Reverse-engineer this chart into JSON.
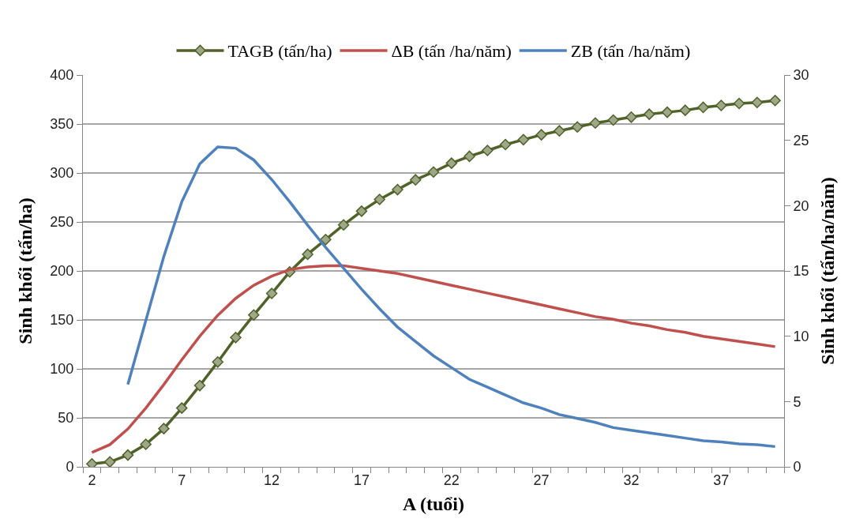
{
  "chart_data": {
    "type": "line",
    "xlabel": "A (tuổi)",
    "ylabel": "Sinh khối (tấn/ha)",
    "y2label": "Sinh khối (tấn/ha/năm)",
    "x": [
      2,
      3,
      4,
      5,
      6,
      7,
      8,
      9,
      10,
      11,
      12,
      13,
      14,
      15,
      16,
      17,
      18,
      19,
      20,
      21,
      22,
      23,
      24,
      25,
      26,
      27,
      28,
      29,
      30,
      31,
      32,
      33,
      34,
      35,
      36,
      37,
      38,
      39,
      40
    ],
    "xlim": [
      1.5,
      40.5
    ],
    "xticks": [
      2,
      7,
      12,
      17,
      22,
      27,
      32,
      37
    ],
    "ylim": [
      0,
      400
    ],
    "yticks": [
      0,
      50,
      100,
      150,
      200,
      250,
      300,
      350,
      400
    ],
    "y2lim": [
      0,
      30
    ],
    "y2ticks": [
      0,
      5,
      10,
      15,
      20,
      25,
      30
    ],
    "grid": "y",
    "legend": "top",
    "line_style": "solid",
    "series": [
      {
        "name": "TAGB (tấn/ha)",
        "color": "#4f6228",
        "marker": "diamond",
        "values": [
          3,
          5,
          12,
          23,
          39,
          60,
          83,
          107,
          132,
          155,
          177,
          199,
          217,
          232,
          247,
          261,
          273,
          283,
          293,
          301,
          310,
          317,
          323,
          329,
          334,
          339,
          343,
          347,
          351,
          354,
          357,
          360,
          362,
          364,
          367,
          369,
          371,
          372,
          374
        ]
      },
      {
        "name": "ΔB (tấn /ha/năm)",
        "color": "#c0504d",
        "marker": "none",
        "axis": "y2",
        "values": [
          1.1,
          1.7,
          2.9,
          4.5,
          6.3,
          8.2,
          10.0,
          11.6,
          12.9,
          13.9,
          14.6,
          15.1,
          15.3,
          15.4,
          15.4,
          15.2,
          15.0,
          14.8,
          14.5,
          14.2,
          13.9,
          13.6,
          13.3,
          13.0,
          12.7,
          12.4,
          12.1,
          11.8,
          11.5,
          11.3,
          11.0,
          10.8,
          10.5,
          10.3,
          10.0,
          9.8,
          9.6,
          9.4,
          9.2
        ]
      },
      {
        "name": "ZB (tấn /ha/năm)",
        "color": "#4f81bd",
        "marker": "none",
        "axis": "y2",
        "values": [
          null,
          null,
          6.3,
          11.2,
          16.1,
          20.3,
          23.2,
          24.5,
          24.4,
          23.5,
          22.0,
          20.3,
          18.5,
          16.8,
          15.2,
          13.6,
          12.1,
          10.7,
          9.6,
          8.5,
          7.6,
          6.7,
          6.1,
          5.5,
          4.9,
          4.5,
          4.0,
          3.7,
          3.4,
          3.0,
          2.8,
          2.6,
          2.4,
          2.2,
          2.0,
          1.9,
          1.75,
          1.7,
          1.55
        ]
      }
    ]
  }
}
